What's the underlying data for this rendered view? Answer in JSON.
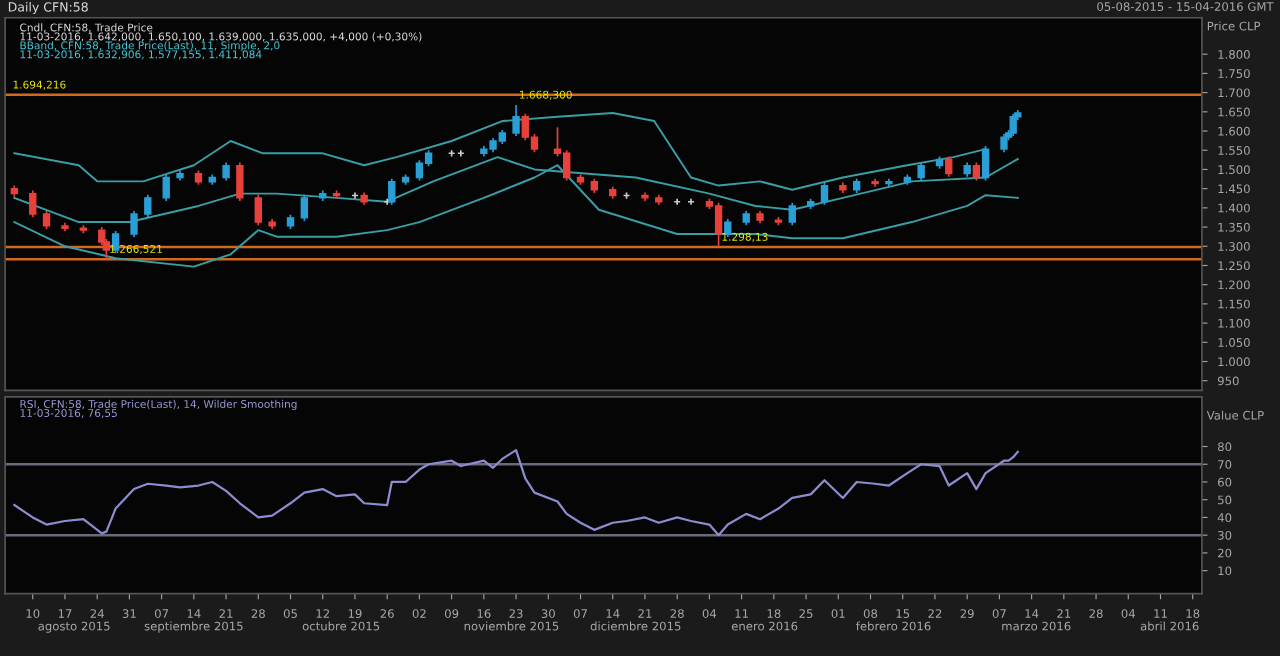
{
  "chart_data": [
    {
      "type": "candlestick",
      "title": "Daily CFN:58",
      "ylabel": "Price CLP",
      "annotations": [
        "Cndl, CFN:58, Trade Price",
        "11-03-2016, 1.642,000, 1.650,100, 1.639,000, 1.635,000, +4,000 (+0,30%)",
        "BBand, CFN:58, Trade Price(Last), 11, Simple, 2,0",
        "11-03-2016, 1.632,906, 1.577,155, 1.411,084",
        "05-08-2015 - 15-04-2016 GMT",
        {
          "text": "1.694,216",
          "x": "2015-08-05",
          "y": 1694.216
        },
        {
          "text": "1.668,300",
          "x": "2015-11-23",
          "y": 1668
        },
        {
          "text": "1.298,13",
          "x": "2016-01-06",
          "y": 1298.13
        },
        {
          "text": "1.266,521",
          "x": "2015-08-26",
          "y": 1266.521
        }
      ],
      "x": [
        "2015-08-06",
        "2015-08-10",
        "2015-08-13",
        "2015-08-17",
        "2015-08-21",
        "2015-08-25",
        "2015-08-26",
        "2015-08-28",
        "2015-09-01",
        "2015-09-04",
        "2015-09-08",
        "2015-09-11",
        "2015-09-15",
        "2015-09-18",
        "2015-09-21",
        "2015-09-24",
        "2015-09-28",
        "2015-10-01",
        "2015-10-05",
        "2015-10-08",
        "2015-10-12",
        "2015-10-15",
        "2015-10-19",
        "2015-10-21",
        "2015-10-26",
        "2015-10-27",
        "2015-10-30",
        "2015-11-02",
        "2015-11-04",
        "2015-11-09",
        "2015-11-11",
        "2015-11-16",
        "2015-11-18",
        "2015-11-20",
        "2015-11-23",
        "2015-11-25",
        "2015-11-27",
        "2015-12-02",
        "2015-12-04",
        "2015-12-07",
        "2015-12-10",
        "2015-12-14",
        "2015-12-17",
        "2015-12-21",
        "2015-12-24",
        "2015-12-28",
        "2015-12-31",
        "2016-01-04",
        "2016-01-06",
        "2016-01-08",
        "2016-01-12",
        "2016-01-15",
        "2016-01-19",
        "2016-01-22",
        "2016-01-26",
        "2016-01-29",
        "2016-02-02",
        "2016-02-05",
        "2016-02-09",
        "2016-02-12",
        "2016-02-16",
        "2016-02-19",
        "2016-02-23",
        "2016-02-25",
        "2016-02-29",
        "2016-03-02",
        "2016-03-04",
        "2016-03-08",
        "2016-03-09",
        "2016-03-10",
        "2016-03-11"
      ],
      "ohlc": [
        [
          1450,
          1458,
          1429,
          1437
        ],
        [
          1437,
          1445,
          1376,
          1384
        ],
        [
          1384,
          1392,
          1345,
          1353
        ],
        [
          1353,
          1361,
          1339,
          1347
        ],
        [
          1347,
          1355,
          1334,
          1342
        ],
        [
          1342,
          1350,
          1303,
          1311
        ],
        [
          1311,
          1319,
          1266,
          1290
        ],
        [
          1290,
          1340,
          1282,
          1332
        ],
        [
          1332,
          1392,
          1324,
          1384
        ],
        [
          1384,
          1434,
          1376,
          1426
        ],
        [
          1426,
          1487,
          1418,
          1479
        ],
        [
          1479,
          1497,
          1471,
          1489
        ],
        [
          1489,
          1497,
          1460,
          1468
        ],
        [
          1468,
          1487,
          1460,
          1479
        ],
        [
          1479,
          1518,
          1471,
          1510
        ],
        [
          1510,
          1518,
          1418,
          1426
        ],
        [
          1426,
          1434,
          1355,
          1363
        ],
        [
          1363,
          1371,
          1345,
          1353
        ],
        [
          1353,
          1382,
          1345,
          1374
        ],
        [
          1374,
          1434,
          1366,
          1426
        ],
        [
          1426,
          1445,
          1418,
          1437
        ],
        [
          1437,
          1445,
          1424,
          1432
        ],
        [
          1432,
          1440,
          1424,
          1432
        ],
        [
          1432,
          1440,
          1408,
          1416
        ],
        [
          1416,
          1424,
          1408,
          1416
        ],
        [
          1416,
          1476,
          1408,
          1468
        ],
        [
          1468,
          1487,
          1460,
          1479
        ],
        [
          1479,
          1524,
          1471,
          1516
        ],
        [
          1516,
          1550,
          1508,
          1542
        ],
        [
          1542,
          1550,
          1534,
          1542
        ],
        [
          1542,
          1550,
          1534,
          1542
        ],
        [
          1542,
          1561,
          1534,
          1553
        ],
        [
          1553,
          1582,
          1545,
          1574
        ],
        [
          1574,
          1603,
          1566,
          1595
        ],
        [
          1595,
          1668,
          1587,
          1637
        ],
        [
          1637,
          1645,
          1576,
          1584
        ],
        [
          1584,
          1592,
          1545,
          1553
        ],
        [
          1553,
          1610,
          1534,
          1542
        ],
        [
          1542,
          1550,
          1471,
          1479
        ],
        [
          1479,
          1487,
          1460,
          1468
        ],
        [
          1468,
          1476,
          1439,
          1447
        ],
        [
          1447,
          1455,
          1424,
          1432
        ],
        [
          1432,
          1440,
          1424,
          1432
        ],
        [
          1432,
          1440,
          1418,
          1426
        ],
        [
          1426,
          1434,
          1408,
          1416
        ],
        [
          1416,
          1424,
          1408,
          1416
        ],
        [
          1416,
          1424,
          1408,
          1416
        ],
        [
          1416,
          1424,
          1397,
          1405
        ],
        [
          1405,
          1413,
          1298,
          1332
        ],
        [
          1332,
          1371,
          1324,
          1363
        ],
        [
          1363,
          1392,
          1355,
          1384
        ],
        [
          1384,
          1392,
          1360,
          1368
        ],
        [
          1368,
          1376,
          1355,
          1363
        ],
        [
          1363,
          1413,
          1355,
          1405
        ],
        [
          1405,
          1424,
          1397,
          1416
        ],
        [
          1416,
          1466,
          1408,
          1458
        ],
        [
          1458,
          1466,
          1439,
          1447
        ],
        [
          1447,
          1476,
          1439,
          1468
        ],
        [
          1468,
          1476,
          1455,
          1463
        ],
        [
          1463,
          1476,
          1455,
          1468
        ],
        [
          1468,
          1487,
          1460,
          1479
        ],
        [
          1479,
          1518,
          1471,
          1510
        ],
        [
          1510,
          1534,
          1502,
          1526
        ],
        [
          1526,
          1534,
          1481,
          1489
        ],
        [
          1489,
          1518,
          1481,
          1510
        ],
        [
          1510,
          1518,
          1471,
          1479
        ],
        [
          1479,
          1561,
          1471,
          1553
        ],
        [
          1553,
          1592,
          1545,
          1584
        ],
        [
          1584,
          1603,
          1576,
          1595
        ],
        [
          1595,
          1645,
          1587,
          1637
        ],
        [
          1637,
          1655,
          1629,
          1647
        ]
      ],
      "colors": [
        "#e8413c",
        "#e8413c",
        "#e8413c",
        "#e8413c",
        "#e8413c",
        "#e8413c",
        "#e8413c",
        "#2a9fd6",
        "#2a9fd6",
        "#2a9fd6",
        "#2a9fd6",
        "#2a9fd6",
        "#e8413c",
        "#2a9fd6",
        "#2a9fd6",
        "#e8413c",
        "#e8413c",
        "#e8413c",
        "#2a9fd6",
        "#2a9fd6",
        "#2a9fd6",
        "#e8413c",
        "#cccccc",
        "#e8413c",
        "#cccccc",
        "#2a9fd6",
        "#2a9fd6",
        "#2a9fd6",
        "#2a9fd6",
        "#cccccc",
        "#cccccc",
        "#2a9fd6",
        "#2a9fd6",
        "#2a9fd6",
        "#2a9fd6",
        "#e8413c",
        "#e8413c",
        "#e8413c",
        "#e8413c",
        "#e8413c",
        "#e8413c",
        "#e8413c",
        "#cccccc",
        "#e8413c",
        "#e8413c",
        "#cccccc",
        "#cccccc",
        "#e8413c",
        "#e8413c",
        "#2a9fd6",
        "#2a9fd6",
        "#e8413c",
        "#e8413c",
        "#2a9fd6",
        "#2a9fd6",
        "#2a9fd6",
        "#e8413c",
        "#2a9fd6",
        "#e8413c",
        "#2a9fd6",
        "#2a9fd6",
        "#2a9fd6",
        "#2a9fd6",
        "#e8413c",
        "#2a9fd6",
        "#e8413c",
        "#2a9fd6",
        "#2a9fd6",
        "#2a9fd6",
        "#2a9fd6",
        "#2a9fd6"
      ],
      "series": [
        {
          "type": "line",
          "color": "#3a9ea6",
          "x": [
            "2015-08-06",
            "2015-08-20",
            "2015-08-24",
            "2015-09-03",
            "2015-09-14",
            "2015-09-22",
            "2015-09-29",
            "2015-10-12",
            "2015-10-21",
            "2015-10-28",
            "2015-11-09",
            "2015-11-20",
            "2015-12-02",
            "2015-12-14",
            "2015-12-23",
            "2015-12-31",
            "2016-01-06",
            "2016-01-15",
            "2016-01-22",
            "2016-02-02",
            "2016-02-16",
            "2016-02-26",
            "2016-03-04"
          ],
          "values": [
            1542,
            1511,
            1469,
            1469,
            1511,
            1574,
            1542,
            1542,
            1511,
            1532,
            1574,
            1626,
            1637,
            1647,
            1626,
            1479,
            1458,
            1469,
            1447,
            1479,
            1511,
            1532,
            1553
          ]
        },
        {
          "type": "line",
          "color": "#3a9ea6",
          "x": [
            "2015-08-06",
            "2015-08-20",
            "2015-08-31",
            "2015-09-15",
            "2015-09-24",
            "2015-10-02",
            "2015-10-15",
            "2015-10-26",
            "2015-11-05",
            "2015-11-19",
            "2015-11-27",
            "2015-12-19",
            "2016-01-04",
            "2016-01-14",
            "2016-01-22",
            "2016-02-02",
            "2016-02-17",
            "2016-03-04",
            "2016-03-11"
          ],
          "values": [
            1426,
            1363,
            1363,
            1405,
            1437,
            1437,
            1426,
            1416,
            1469,
            1532,
            1500,
            1479,
            1437,
            1405,
            1395,
            1426,
            1469,
            1479,
            1527
          ]
        },
        {
          "type": "line",
          "color": "#3a9ea6",
          "x": [
            "2015-08-06",
            "2015-08-17",
            "2015-08-28",
            "2015-09-14",
            "2015-09-22",
            "2015-09-28",
            "2015-10-02",
            "2015-10-15",
            "2015-10-26",
            "2015-11-02",
            "2015-11-16",
            "2015-11-27",
            "2015-12-02",
            "2015-12-11",
            "2015-12-28",
            "2016-01-14",
            "2016-01-22",
            "2016-02-02",
            "2016-02-17",
            "2016-02-29",
            "2016-03-04",
            "2016-03-11"
          ],
          "values": [
            1363,
            1300,
            1269,
            1247,
            1279,
            1342,
            1325,
            1325,
            1342,
            1363,
            1426,
            1479,
            1511,
            1395,
            1332,
            1332,
            1321,
            1321,
            1363,
            1405,
            1433,
            1426
          ]
        }
      ],
      "ref_lines": [
        {
          "axis": "y",
          "value": 1694.216,
          "color": "#d2691e"
        },
        {
          "axis": "y",
          "value": 1298.13,
          "color": "#d2691e"
        },
        {
          "axis": "y",
          "value": 1266.521,
          "color": "#d2691e"
        }
      ],
      "ylim": [
        925,
        1895
      ],
      "yticks": [
        {
          "value": 950,
          "label": "950"
        },
        {
          "value": 1000,
          "label": "1.000"
        },
        {
          "value": 1050,
          "label": "1.050"
        },
        {
          "value": 1100,
          "label": "1.100"
        },
        {
          "value": 1150,
          "label": "1.150"
        },
        {
          "value": 1200,
          "label": "1.200"
        },
        {
          "value": 1250,
          "label": "1.250"
        },
        {
          "value": 1300,
          "label": "1.300"
        },
        {
          "value": 1350,
          "label": "1.350"
        },
        {
          "value": 1400,
          "label": "1.400"
        },
        {
          "value": 1450,
          "label": "1.450"
        },
        {
          "value": 1500,
          "label": "1.500"
        },
        {
          "value": 1550,
          "label": "1.550"
        },
        {
          "value": 1600,
          "label": "1.600"
        },
        {
          "value": 1650,
          "label": "1.650"
        },
        {
          "value": 1700,
          "label": "1.700"
        },
        {
          "value": 1750,
          "label": "1.750"
        },
        {
          "value": 1800,
          "label": "1.800"
        }
      ],
      "xlim": [
        "2015-08-04",
        "2016-04-20"
      ],
      "tick_labels": "y",
      "grid": false
    },
    {
      "type": "line",
      "color": "#8c8cd0",
      "annotations": [
        "RSI, CFN:58, Trade Price(Last), 14, Wilder Smoothing",
        "11-03-2016, 76,55"
      ],
      "ylabel": "Value CLP",
      "x": [
        "2015-08-06",
        "2015-08-10",
        "2015-08-13",
        "2015-08-17",
        "2015-08-21",
        "2015-08-25",
        "2015-08-26",
        "2015-08-28",
        "2015-09-01",
        "2015-09-04",
        "2015-09-08",
        "2015-09-11",
        "2015-09-15",
        "2015-09-18",
        "2015-09-21",
        "2015-09-24",
        "2015-09-28",
        "2015-10-01",
        "2015-10-05",
        "2015-10-08",
        "2015-10-12",
        "2015-10-15",
        "2015-10-19",
        "2015-10-21",
        "2015-10-26",
        "2015-10-27",
        "2015-10-30",
        "2015-11-02",
        "2015-11-04",
        "2015-11-09",
        "2015-11-11",
        "2015-11-16",
        "2015-11-18",
        "2015-11-20",
        "2015-11-23",
        "2015-11-25",
        "2015-11-27",
        "2015-12-02",
        "2015-12-04",
        "2015-12-07",
        "2015-12-10",
        "2015-12-14",
        "2015-12-17",
        "2015-12-21",
        "2015-12-24",
        "2015-12-28",
        "2015-12-31",
        "2016-01-04",
        "2016-01-06",
        "2016-01-08",
        "2016-01-12",
        "2016-01-15",
        "2016-01-19",
        "2016-01-22",
        "2016-01-26",
        "2016-01-29",
        "2016-02-02",
        "2016-02-05",
        "2016-02-09",
        "2016-02-12",
        "2016-02-16",
        "2016-02-19",
        "2016-02-23",
        "2016-02-25",
        "2016-02-29",
        "2016-03-02",
        "2016-03-04",
        "2016-03-08",
        "2016-03-09",
        "2016-03-10",
        "2016-03-11"
      ],
      "values": [
        47,
        40,
        36,
        38,
        39,
        31,
        32,
        45,
        56,
        59,
        58,
        57,
        58,
        60,
        55,
        48,
        40,
        41,
        48,
        54,
        56,
        52,
        53,
        48,
        47,
        60,
        60,
        67,
        70,
        72,
        69,
        72,
        68,
        73,
        78,
        62,
        54,
        49,
        42,
        37,
        33,
        37,
        38,
        40,
        37,
        40,
        38,
        36,
        30,
        36,
        42,
        39,
        45,
        51,
        53,
        61,
        51,
        60,
        59,
        58,
        65,
        70,
        69,
        58,
        65,
        56,
        65,
        72,
        72,
        74,
        77
      ],
      "ref_lines": [
        {
          "axis": "y",
          "value": 70,
          "color": "#6a6a7a"
        },
        {
          "axis": "y",
          "value": 30,
          "color": "#6a6a7a"
        }
      ],
      "ylim": [
        -3,
        108
      ],
      "yticks": [
        10,
        20,
        30,
        40,
        50,
        60,
        70,
        80
      ],
      "xlim": [
        "2015-08-04",
        "2016-04-20"
      ],
      "xticks": [
        {
          "value": "2015-08-10",
          "label": "10"
        },
        {
          "value": "2015-08-17",
          "label": "17"
        },
        {
          "value": "2015-08-24",
          "label": "24"
        },
        {
          "value": "2015-08-31",
          "label": "31"
        },
        {
          "value": "2015-09-07",
          "label": "07"
        },
        {
          "value": "2015-09-14",
          "label": "14"
        },
        {
          "value": "2015-09-21",
          "label": "21"
        },
        {
          "value": "2015-09-28",
          "label": "28"
        },
        {
          "value": "2015-10-05",
          "label": "05"
        },
        {
          "value": "2015-10-12",
          "label": "12"
        },
        {
          "value": "2015-10-19",
          "label": "19"
        },
        {
          "value": "2015-10-26",
          "label": "26"
        },
        {
          "value": "2015-11-02",
          "label": "02"
        },
        {
          "value": "2015-11-09",
          "label": "09"
        },
        {
          "value": "2015-11-16",
          "label": "16"
        },
        {
          "value": "2015-11-23",
          "label": "23"
        },
        {
          "value": "2015-11-30",
          "label": "30"
        },
        {
          "value": "2015-12-07",
          "label": "07"
        },
        {
          "value": "2015-12-14",
          "label": "14"
        },
        {
          "value": "2015-12-21",
          "label": "21"
        },
        {
          "value": "2015-12-28",
          "label": "28"
        },
        {
          "value": "2016-01-04",
          "label": "04"
        },
        {
          "value": "2016-01-11",
          "label": "11"
        },
        {
          "value": "2016-01-18",
          "label": "18"
        },
        {
          "value": "2016-01-25",
          "label": "25"
        },
        {
          "value": "2016-02-01",
          "label": "01"
        },
        {
          "value": "2016-02-08",
          "label": "08"
        },
        {
          "value": "2016-02-15",
          "label": "15"
        },
        {
          "value": "2016-02-22",
          "label": "22"
        },
        {
          "value": "2016-02-29",
          "label": "29"
        },
        {
          "value": "2016-03-07",
          "label": "07"
        },
        {
          "value": "2016-03-14",
          "label": "14"
        },
        {
          "value": "2016-03-21",
          "label": "21"
        },
        {
          "value": "2016-03-28",
          "label": "28"
        },
        {
          "value": "2016-04-04",
          "label": "04"
        },
        {
          "value": "2016-04-11",
          "label": "11"
        },
        {
          "value": "2016-04-18",
          "label": "18"
        }
      ],
      "x2lim": [
        "2015-08-04",
        "2016-04-20"
      ],
      "x2ticks": [
        {
          "value": "2015-08-19",
          "label": "agosto 2015"
        },
        {
          "value": "2015-09-14",
          "label": "septiembre 2015"
        },
        {
          "value": "2015-10-16",
          "label": "octubre 2015"
        },
        {
          "value": "2015-11-22",
          "label": "noviembre 2015"
        },
        {
          "value": "2015-12-19",
          "label": "diciembre 2015"
        },
        {
          "value": "2016-01-16",
          "label": "enero 2016"
        },
        {
          "value": "2016-02-13",
          "label": "febrero 2016"
        },
        {
          "value": "2016-03-15",
          "label": "marzo 2016"
        },
        {
          "value": "2016-04-13",
          "label": "abril 2016"
        }
      ],
      "grid": false
    }
  ]
}
